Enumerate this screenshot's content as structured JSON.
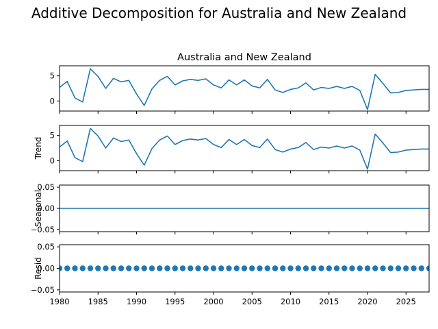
{
  "figure": {
    "suptitle": "Additive Decomposition for Australia and New Zealand"
  },
  "chart_data": {
    "type": "line",
    "x": [
      1980,
      1981,
      1982,
      1983,
      1984,
      1985,
      1986,
      1987,
      1988,
      1989,
      1990,
      1991,
      1992,
      1993,
      1994,
      1995,
      1996,
      1997,
      1998,
      1999,
      2000,
      2001,
      2002,
      2003,
      2004,
      2005,
      2006,
      2007,
      2008,
      2009,
      2010,
      2011,
      2012,
      2013,
      2014,
      2015,
      2016,
      2017,
      2018,
      2019,
      2020,
      2021,
      2022,
      2023,
      2024,
      2025,
      2026,
      2027,
      2028
    ],
    "xlim": [
      1980,
      2028
    ],
    "xticks": [
      "1980",
      "1985",
      "1990",
      "1995",
      "2000",
      "2005",
      "2010",
      "2015",
      "2020",
      "2025"
    ],
    "line_color": "#1f77b4",
    "panels": [
      {
        "name": "observed",
        "title": "Australia and New Zealand",
        "ylabel": "",
        "style": "line",
        "ylim": [
          -2.0,
          7.0
        ],
        "yticks": [
          "0",
          "5"
        ],
        "values": [
          2.7,
          3.9,
          0.6,
          -0.2,
          6.4,
          4.9,
          2.5,
          4.5,
          3.8,
          4.1,
          1.4,
          -0.9,
          2.4,
          4.1,
          4.9,
          3.2,
          4.0,
          4.3,
          4.1,
          4.4,
          3.2,
          2.6,
          4.2,
          3.2,
          4.2,
          3.0,
          2.6,
          4.3,
          2.2,
          1.7,
          2.3,
          2.6,
          3.6,
          2.2,
          2.7,
          2.5,
          2.9,
          2.5,
          2.9,
          2.1,
          -1.7,
          5.3,
          3.5,
          1.6,
          1.7,
          2.1,
          2.2,
          2.3,
          2.3
        ]
      },
      {
        "name": "trend",
        "title": "",
        "ylabel": "Trend",
        "style": "line",
        "ylim": [
          -2.0,
          7.0
        ],
        "yticks": [
          "0",
          "5"
        ],
        "values": [
          2.7,
          3.9,
          0.6,
          -0.2,
          6.4,
          4.9,
          2.5,
          4.5,
          3.8,
          4.1,
          1.4,
          -0.9,
          2.4,
          4.1,
          4.9,
          3.2,
          4.0,
          4.3,
          4.1,
          4.4,
          3.2,
          2.6,
          4.2,
          3.2,
          4.2,
          3.0,
          2.6,
          4.3,
          2.2,
          1.7,
          2.3,
          2.6,
          3.6,
          2.2,
          2.7,
          2.5,
          2.9,
          2.5,
          2.9,
          2.1,
          -1.7,
          5.3,
          3.5,
          1.6,
          1.7,
          2.1,
          2.2,
          2.3,
          2.3
        ]
      },
      {
        "name": "seasonal",
        "title": "",
        "ylabel": "Seasonal",
        "style": "line",
        "ylim": [
          -0.055,
          0.055
        ],
        "yticks": [
          "−0.05",
          "0.00",
          "0.05"
        ],
        "values": [
          0,
          0,
          0,
          0,
          0,
          0,
          0,
          0,
          0,
          0,
          0,
          0,
          0,
          0,
          0,
          0,
          0,
          0,
          0,
          0,
          0,
          0,
          0,
          0,
          0,
          0,
          0,
          0,
          0,
          0,
          0,
          0,
          0,
          0,
          0,
          0,
          0,
          0,
          0,
          0,
          0,
          0,
          0,
          0,
          0,
          0,
          0,
          0,
          0
        ]
      },
      {
        "name": "resid",
        "title": "",
        "ylabel": "Resid",
        "style": "dots",
        "ylim": [
          -0.055,
          0.055
        ],
        "yticks": [
          "−0.05",
          "0.00",
          "0.05"
        ],
        "values": [
          0,
          0,
          0,
          0,
          0,
          0,
          0,
          0,
          0,
          0,
          0,
          0,
          0,
          0,
          0,
          0,
          0,
          0,
          0,
          0,
          0,
          0,
          0,
          0,
          0,
          0,
          0,
          0,
          0,
          0,
          0,
          0,
          0,
          0,
          0,
          0,
          0,
          0,
          0,
          0,
          0,
          0,
          0,
          0,
          0,
          0,
          0,
          0,
          0
        ]
      }
    ]
  }
}
